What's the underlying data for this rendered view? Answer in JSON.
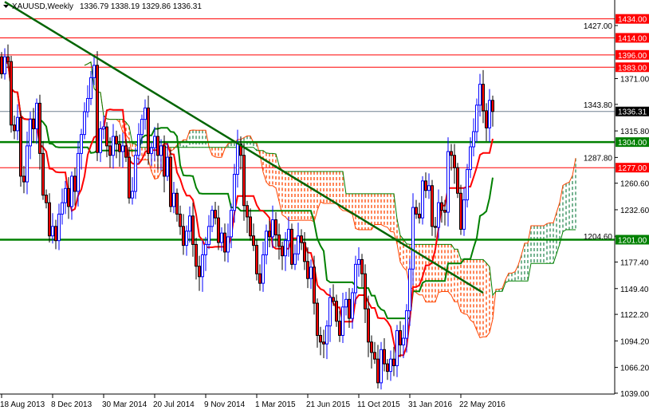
{
  "header": {
    "symbol": "XAUUSD,Weekly",
    "ohlc": "1336.79 1338.19 1329.86 1336.31"
  },
  "chart_data": {
    "type": "candlestick",
    "symbol": "XAUUSD",
    "timeframe": "Weekly",
    "ylim": [
      1039.0,
      1445.0
    ],
    "grid": false,
    "x_ticks": [
      "18 Aug 2013",
      "8 Dec 2013",
      "30 Mar 2014",
      "20 Jul 2014",
      "9 Nov 2014",
      "1 Mar 2015",
      "21 Jun 2015",
      "11 Oct 2015",
      "31 Jan 2016",
      "22 May 2016"
    ],
    "y_ticks": [
      "1427.00",
      "1371.00",
      "1343.80",
      "1315.80",
      "1287.80",
      "1260.60",
      "1232.60",
      "1204.60",
      "1177.40",
      "1149.40",
      "1122.20",
      "1094.20",
      "1066.20",
      "1039.00"
    ],
    "first_bar": "18 Aug 2013",
    "close": [
      1376,
      1394,
      1389,
      1322,
      1316,
      1330,
      1268,
      1262,
      1300,
      1328,
      1318,
      1345,
      1292,
      1248,
      1240,
      1205,
      1215,
      1200,
      1228,
      1240,
      1255,
      1236,
      1268,
      1252,
      1292,
      1312,
      1336,
      1350,
      1372,
      1385,
      1293,
      1318,
      1320,
      1300,
      1290,
      1310,
      1302,
      1294,
      1300,
      1288,
      1245,
      1252,
      1290,
      1312,
      1328,
      1340,
      1292,
      1298,
      1310,
      1290,
      1300,
      1268,
      1288,
      1236,
      1250,
      1228,
      1215,
      1195,
      1210,
      1226,
      1196,
      1173,
      1162,
      1185,
      1196,
      1215,
      1232,
      1224,
      1198,
      1208,
      1188,
      1204,
      1232,
      1270,
      1302,
      1290,
      1237,
      1225,
      1205,
      1195,
      1165,
      1155,
      1185,
      1210,
      1204,
      1222,
      1206,
      1194,
      1184,
      1200,
      1212,
      1175,
      1186,
      1205,
      1198,
      1178,
      1160,
      1172,
      1134,
      1100,
      1093,
      1091,
      1110,
      1140,
      1136,
      1115,
      1100,
      1130,
      1138,
      1118,
      1145,
      1175,
      1180,
      1165,
      1128,
      1093,
      1082,
      1075,
      1050,
      1085,
      1070,
      1062,
      1075,
      1068,
      1105,
      1090,
      1097,
      1126,
      1170,
      1235,
      1228,
      1224,
      1263,
      1253,
      1258,
      1215,
      1214,
      1240,
      1232,
      1230,
      1294,
      1290,
      1277,
      1250,
      1212,
      1243,
      1275,
      1299,
      1315,
      1343,
      1365,
      1337,
      1319,
      1348,
      1336.31
    ],
    "indicator": "Ichimoku Kinko Hyo",
    "colors": {
      "bull_candle": "#0000ff",
      "bear_candle": "#ff0000",
      "tenkan": "#ff0000",
      "kijun": "#008000",
      "cloud_bear": "#ff4500",
      "cloud_bull": "#2e8b57",
      "resistance": "#ff0000",
      "support": "#008000",
      "price_line": "#708090"
    },
    "horizontal_levels": [
      {
        "price": 1434.0,
        "label": "1434.00",
        "color": "#ff0000"
      },
      {
        "price": 1414.0,
        "label": "1414.00",
        "color": "#ff0000"
      },
      {
        "price": 1396.0,
        "label": "1396.00",
        "color": "#ff0000"
      },
      {
        "price": 1383.0,
        "label": "1383.00",
        "color": "#ff0000"
      },
      {
        "price": 1304.0,
        "label": "1304.00",
        "color": "#008000"
      },
      {
        "price": 1277.0,
        "label": "1277.00",
        "color": "#ff0000"
      },
      {
        "price": 1201.0,
        "label": "1201.00",
        "color": "#008000"
      }
    ],
    "current_price": {
      "price": 1336.31,
      "label": "1336.31"
    },
    "trendline": {
      "from": {
        "bar": "25 Aug 2013",
        "price": 1452
      },
      "to": {
        "bar": "26 Jun 2016",
        "price": 1145
      },
      "color": "#006400"
    }
  }
}
